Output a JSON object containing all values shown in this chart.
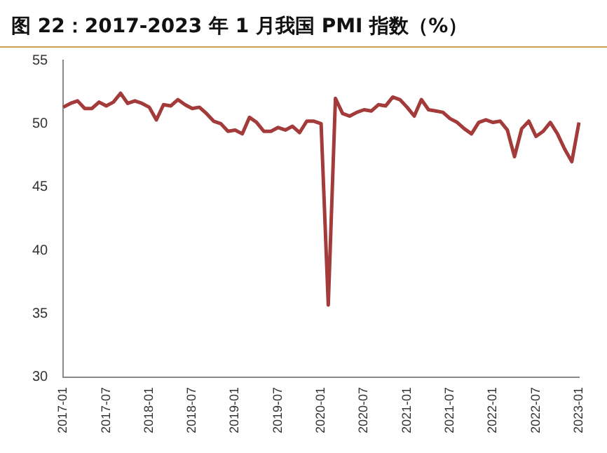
{
  "chart_data": {
    "type": "line",
    "title": "图 22：2017-2023 年 1 月我国 PMI 指数（%）",
    "categories": [
      "2017-01",
      null,
      null,
      null,
      null,
      null,
      "2017-07",
      null,
      null,
      null,
      null,
      null,
      "2018-01",
      null,
      null,
      null,
      null,
      null,
      "2018-07",
      null,
      null,
      null,
      null,
      null,
      "2019-01",
      null,
      null,
      null,
      null,
      null,
      "2019-07",
      null,
      null,
      null,
      null,
      null,
      "2020-01",
      null,
      null,
      null,
      null,
      null,
      "2020-07",
      null,
      null,
      null,
      null,
      null,
      "2021-01",
      null,
      null,
      null,
      null,
      null,
      "2021-07",
      null,
      null,
      null,
      null,
      null,
      "2022-01",
      null,
      null,
      null,
      null,
      null,
      "2022-07",
      null,
      null,
      null,
      null,
      null,
      "2023-01"
    ],
    "series": [
      {
        "color": "#a33b3b",
        "values": [
          51.3,
          51.6,
          51.8,
          51.2,
          51.2,
          51.7,
          51.4,
          51.7,
          52.4,
          51.6,
          51.8,
          51.6,
          51.3,
          50.3,
          51.5,
          51.4,
          51.9,
          51.5,
          51.2,
          51.3,
          50.8,
          50.2,
          50.0,
          49.4,
          49.5,
          49.2,
          50.5,
          50.1,
          49.4,
          49.4,
          49.7,
          49.5,
          49.8,
          49.3,
          50.2,
          50.2,
          50.0,
          35.7,
          52.0,
          50.8,
          50.6,
          50.9,
          51.1,
          51.0,
          51.5,
          51.4,
          52.1,
          51.9,
          51.3,
          50.6,
          51.9,
          51.1,
          51.0,
          50.9,
          50.4,
          50.1,
          49.6,
          49.2,
          50.1,
          50.3,
          50.1,
          50.2,
          49.5,
          47.4,
          49.6,
          50.2,
          49.0,
          49.4,
          50.1,
          49.2,
          48.0,
          47.0,
          50.1
        ]
      }
    ],
    "ylim": [
      30,
      55
    ],
    "yticks": [
      30,
      35,
      40,
      45,
      50,
      55
    ],
    "grid": false,
    "legend": false,
    "marker": "none",
    "line_style": "solid"
  }
}
